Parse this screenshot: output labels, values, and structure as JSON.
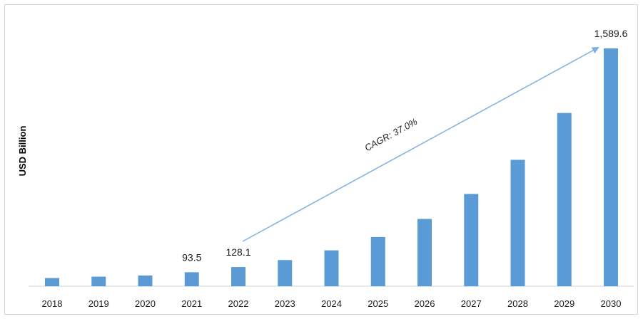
{
  "chart_data": {
    "type": "bar",
    "title": "",
    "xlabel": "",
    "ylabel": "USD Billion",
    "categories": [
      "2018",
      "2019",
      "2020",
      "2021",
      "2022",
      "2023",
      "2024",
      "2025",
      "2026",
      "2027",
      "2028",
      "2029",
      "2030"
    ],
    "values": [
      55,
      64,
      72,
      93.5,
      128.1,
      175,
      240,
      329,
      450,
      617,
      845,
      1158,
      1589.6
    ],
    "data_labels": [
      {
        "category": "2021",
        "text": "93.5"
      },
      {
        "category": "2022",
        "text": "128.1"
      },
      {
        "category": "2030",
        "text": "1,589.6"
      }
    ],
    "annotation": {
      "text": "CAGR: 37.0%",
      "from": "2022",
      "to": "2030"
    },
    "ylim": [
      0,
      1600
    ],
    "grid": false,
    "legend": "none",
    "colors": {
      "bar": "#5b9bd5",
      "arrow": "#7fb0dd",
      "axis": "#d0d0d0"
    }
  }
}
